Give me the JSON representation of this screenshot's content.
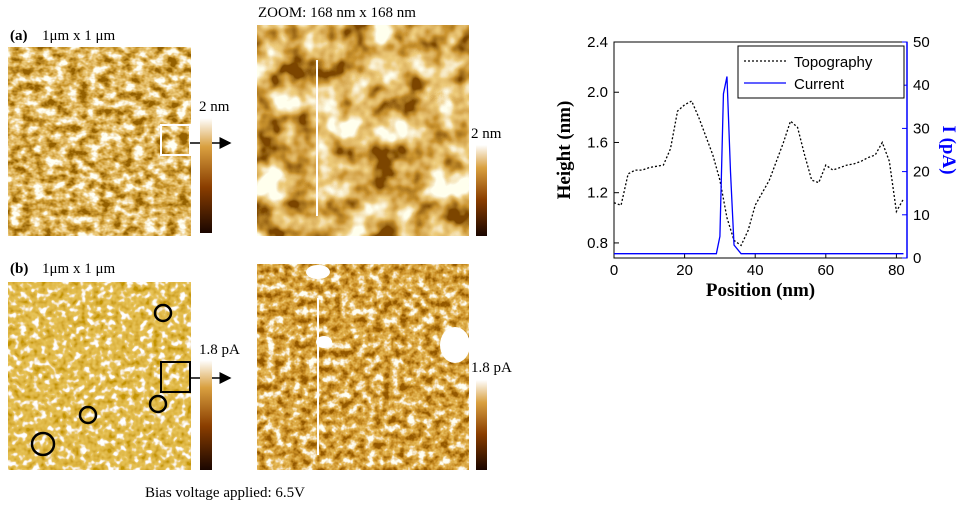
{
  "panels": {
    "a": {
      "label": "(a)",
      "scan_size": "1μm x 1 μm",
      "scale": "2 nm",
      "zoom_title": "ZOOM: 168 nm x 168 nm",
      "zoom_scale": "2 nm"
    },
    "b": {
      "label": "(b)",
      "scan_size": "1μm x 1 μm",
      "scale": "1.8 pA",
      "zoom_scale": "1.8 pA"
    }
  },
  "caption": "Bias voltage applied: 6.5V",
  "chart_data": {
    "type": "line",
    "x_label": "Position (nm)",
    "y_label": "Height (nm)",
    "y2_label": "I (pA)",
    "xlim": [
      0,
      83
    ],
    "xticks": [
      0,
      20,
      40,
      60,
      80
    ],
    "ylim": [
      0.68,
      2.4
    ],
    "yticks": [
      0.8,
      1.2,
      1.6,
      {
        "value": 2,
        "label": "2.0"
      },
      2.4
    ],
    "y2lim": [
      0,
      50
    ],
    "y2ticks": [
      0,
      10,
      20,
      30,
      40,
      50
    ],
    "legend": "upper right",
    "series": [
      {
        "name": "Topography",
        "color": "#000000",
        "dash": "dotted",
        "x": [
          0,
          2,
          4,
          6,
          8,
          10,
          12,
          14,
          16,
          18,
          20,
          22,
          24,
          26,
          28,
          30,
          32,
          34,
          36,
          38,
          40,
          42,
          44,
          46,
          48,
          50,
          52,
          54,
          56,
          58,
          60,
          62,
          64,
          66,
          68,
          70,
          72,
          74,
          76,
          78,
          80,
          82
        ],
        "values": [
          1.12,
          1.1,
          1.35,
          1.38,
          1.38,
          1.4,
          1.41,
          1.42,
          1.55,
          1.85,
          1.9,
          1.93,
          1.8,
          1.65,
          1.5,
          1.3,
          1.0,
          0.82,
          0.78,
          0.9,
          1.1,
          1.2,
          1.3,
          1.45,
          1.6,
          1.77,
          1.72,
          1.5,
          1.3,
          1.28,
          1.42,
          1.38,
          1.4,
          1.42,
          1.43,
          1.45,
          1.48,
          1.5,
          1.6,
          1.45,
          1.05,
          1.15
        ]
      },
      {
        "name": "Current",
        "color": "#0000ff",
        "axis": "y2",
        "x": [
          0,
          10,
          20,
          29,
          30,
          31,
          32,
          33,
          34,
          36,
          40,
          60,
          82
        ],
        "values": [
          1,
          1,
          1,
          1,
          5,
          38,
          42,
          20,
          3,
          1,
          1,
          1,
          1
        ]
      }
    ]
  }
}
